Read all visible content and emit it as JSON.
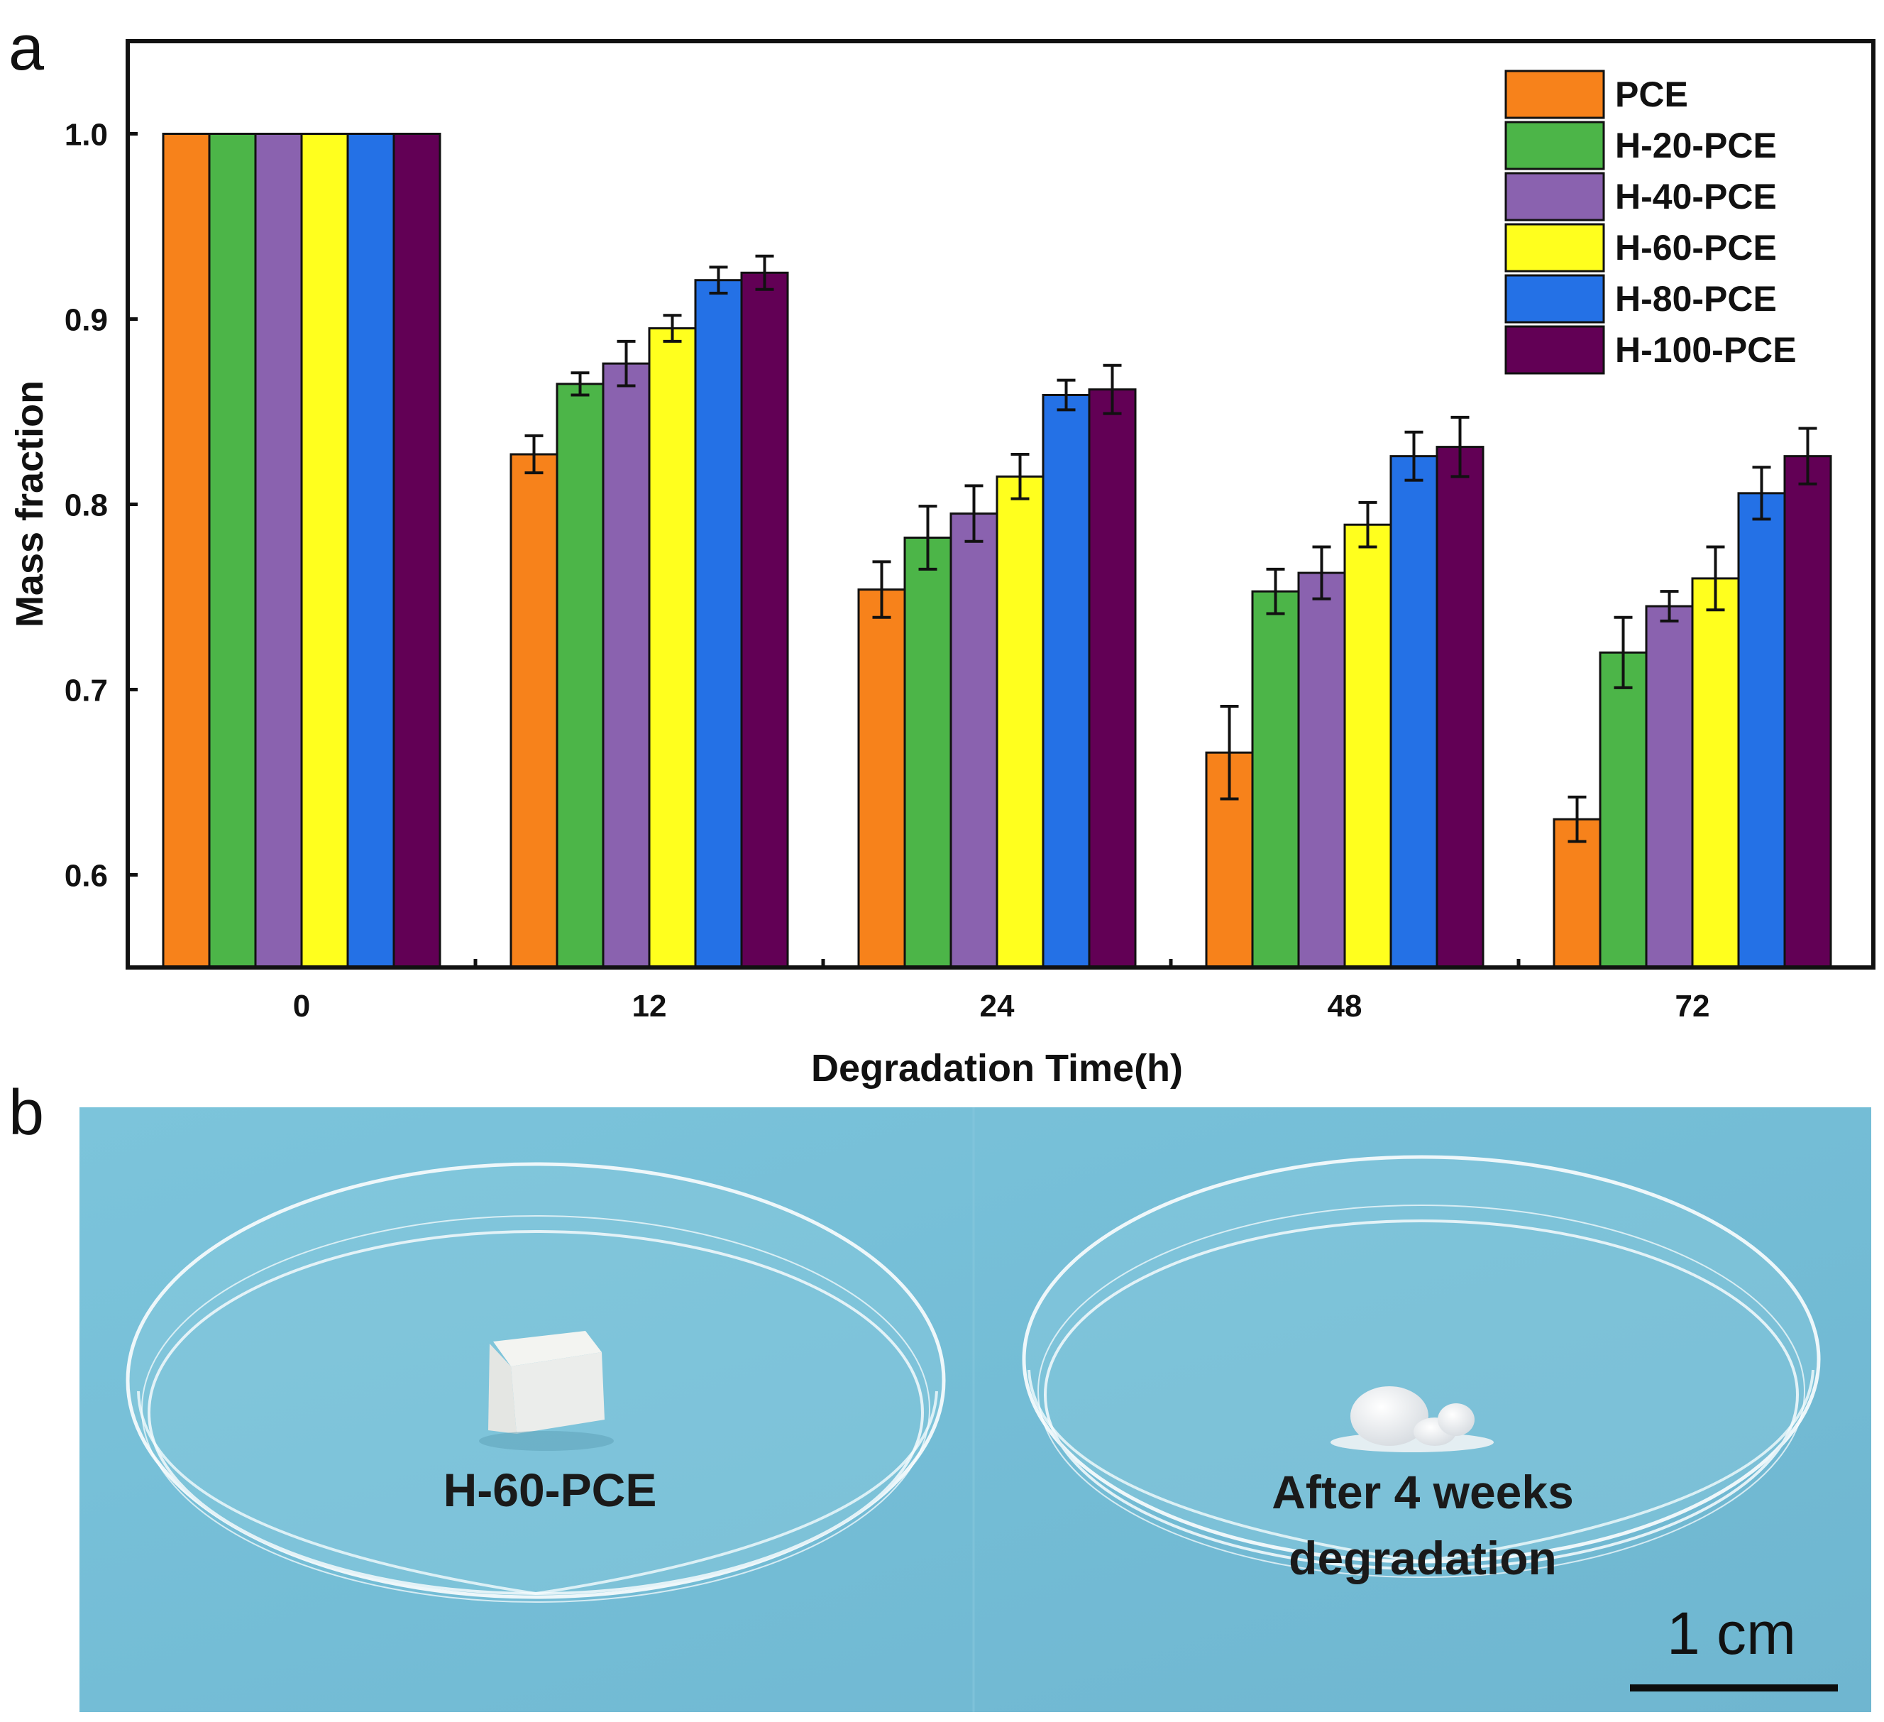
{
  "panels": {
    "a": "a",
    "b": "b"
  },
  "chart_data": {
    "type": "bar",
    "title": "",
    "xlabel": "Degradation Time(h)",
    "ylabel": "Mass fraction",
    "ylim": [
      0.55,
      1.05
    ],
    "yticks": [
      0.6,
      0.7,
      0.8,
      0.9,
      1.0
    ],
    "ytick_labels": [
      "0.6",
      "0.7",
      "0.8",
      "0.9",
      "1.0"
    ],
    "categories": [
      "0",
      "12",
      "24",
      "48",
      "72"
    ],
    "legend_position": "top-right",
    "series": [
      {
        "name": "PCE",
        "color": "#F7821B",
        "values": [
          1.0,
          0.827,
          0.754,
          0.666,
          0.63
        ],
        "errors": [
          0,
          0.01,
          0.015,
          0.025,
          0.012
        ]
      },
      {
        "name": "H-20-PCE",
        "color": "#4CB548",
        "values": [
          1.0,
          0.865,
          0.782,
          0.753,
          0.72
        ],
        "errors": [
          0,
          0.006,
          0.017,
          0.012,
          0.019
        ]
      },
      {
        "name": "H-40-PCE",
        "color": "#8A62AF",
        "values": [
          1.0,
          0.876,
          0.795,
          0.763,
          0.745
        ],
        "errors": [
          0,
          0.012,
          0.015,
          0.014,
          0.008
        ]
      },
      {
        "name": "H-60-PCE",
        "color": "#FFFF1E",
        "values": [
          1.0,
          0.895,
          0.815,
          0.789,
          0.76
        ],
        "errors": [
          0,
          0.007,
          0.012,
          0.012,
          0.017
        ]
      },
      {
        "name": "H-80-PCE",
        "color": "#2471E6",
        "values": [
          1.0,
          0.921,
          0.859,
          0.826,
          0.806
        ],
        "errors": [
          0,
          0.007,
          0.008,
          0.013,
          0.014
        ]
      },
      {
        "name": "H-100-PCE",
        "color": "#620055",
        "values": [
          1.0,
          0.925,
          0.862,
          0.831,
          0.826
        ],
        "errors": [
          0,
          0.009,
          0.013,
          0.016,
          0.015
        ]
      }
    ]
  },
  "photo": {
    "left_label": "H-60-PCE",
    "right_label_line1": "After 4 weeks",
    "right_label_line2": "degradation",
    "scale_bar_label": "1 cm"
  },
  "colors": {
    "photo_background": "#79c1d9",
    "dish_rim": "#eef7fa"
  }
}
